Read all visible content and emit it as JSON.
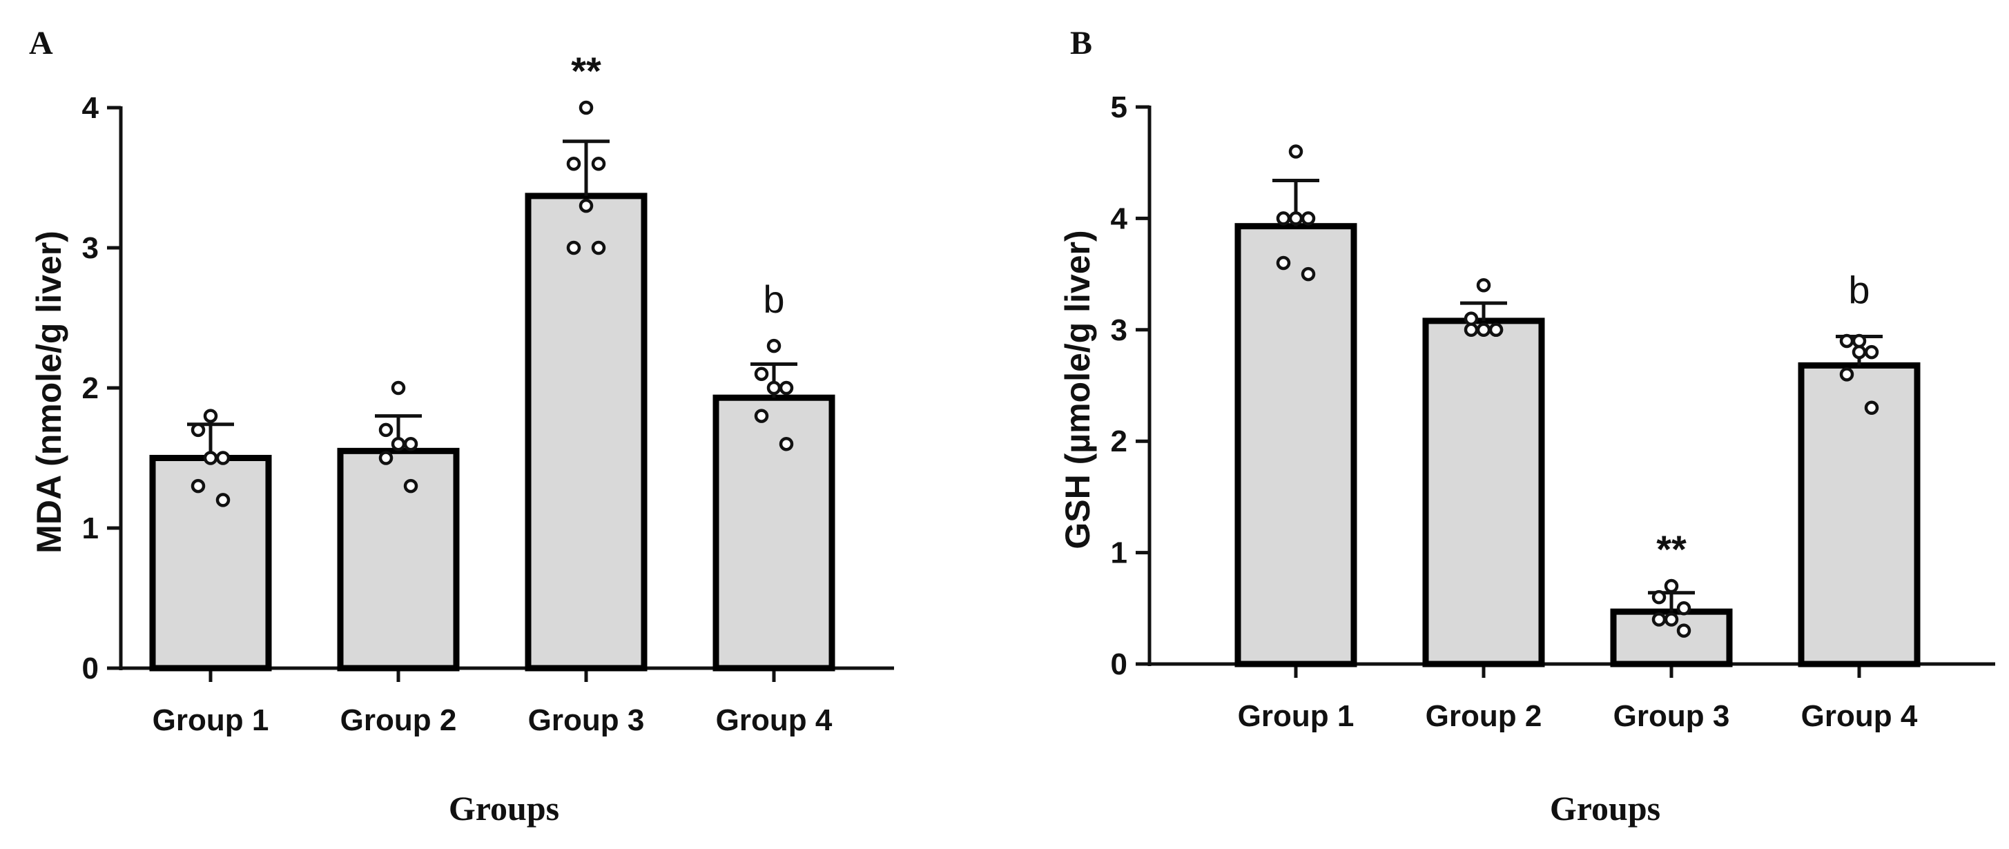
{
  "chart_data": [
    {
      "panel": "A",
      "type": "bar",
      "title": "",
      "xlabel": "Groups",
      "ylabel": "MDA (nmole/g liver)",
      "ylim": [
        0,
        4
      ],
      "yticks": [
        0,
        1,
        2,
        3,
        4
      ],
      "categories": [
        "Group 1",
        "Group 2",
        "Group 3",
        "Group 4"
      ],
      "values": [
        1.5,
        1.55,
        3.37,
        1.93
      ],
      "errors": [
        0.24,
        0.25,
        0.39,
        0.24
      ],
      "points": [
        [
          1.8,
          1.7,
          1.5,
          1.5,
          1.3,
          1.2
        ],
        [
          2.0,
          1.7,
          1.6,
          1.6,
          1.5,
          1.3
        ],
        [
          4.0,
          3.6,
          3.6,
          3.3,
          3.0,
          3.0
        ],
        [
          2.3,
          2.1,
          2.0,
          2.0,
          1.8,
          1.6
        ]
      ],
      "annotations": [
        "",
        "",
        "**",
        "b"
      ],
      "bar_color": "#d9d9d9",
      "edge_color": "#000000"
    },
    {
      "panel": "B",
      "type": "bar",
      "title": "",
      "xlabel": "Groups",
      "ylabel": "GSH (µmole/g liver)",
      "ylim": [
        0,
        5
      ],
      "yticks": [
        0,
        1,
        2,
        3,
        4,
        5
      ],
      "categories": [
        "Group 1",
        "Group 2",
        "Group 3",
        "Group 4"
      ],
      "values": [
        3.93,
        3.08,
        0.47,
        2.68
      ],
      "errors": [
        0.41,
        0.16,
        0.17,
        0.26
      ],
      "points": [
        [
          4.6,
          4.0,
          4.0,
          4.0,
          3.6,
          3.5
        ],
        [
          3.4,
          3.1,
          3.0,
          3.0,
          3.0,
          3.0
        ],
        [
          0.7,
          0.6,
          0.5,
          0.4,
          0.4,
          0.3
        ],
        [
          2.9,
          2.9,
          2.8,
          2.8,
          2.6,
          2.3
        ]
      ],
      "annotations": [
        "",
        "",
        "**",
        "b"
      ],
      "bar_color": "#d9d9d9",
      "edge_color": "#000000"
    }
  ]
}
